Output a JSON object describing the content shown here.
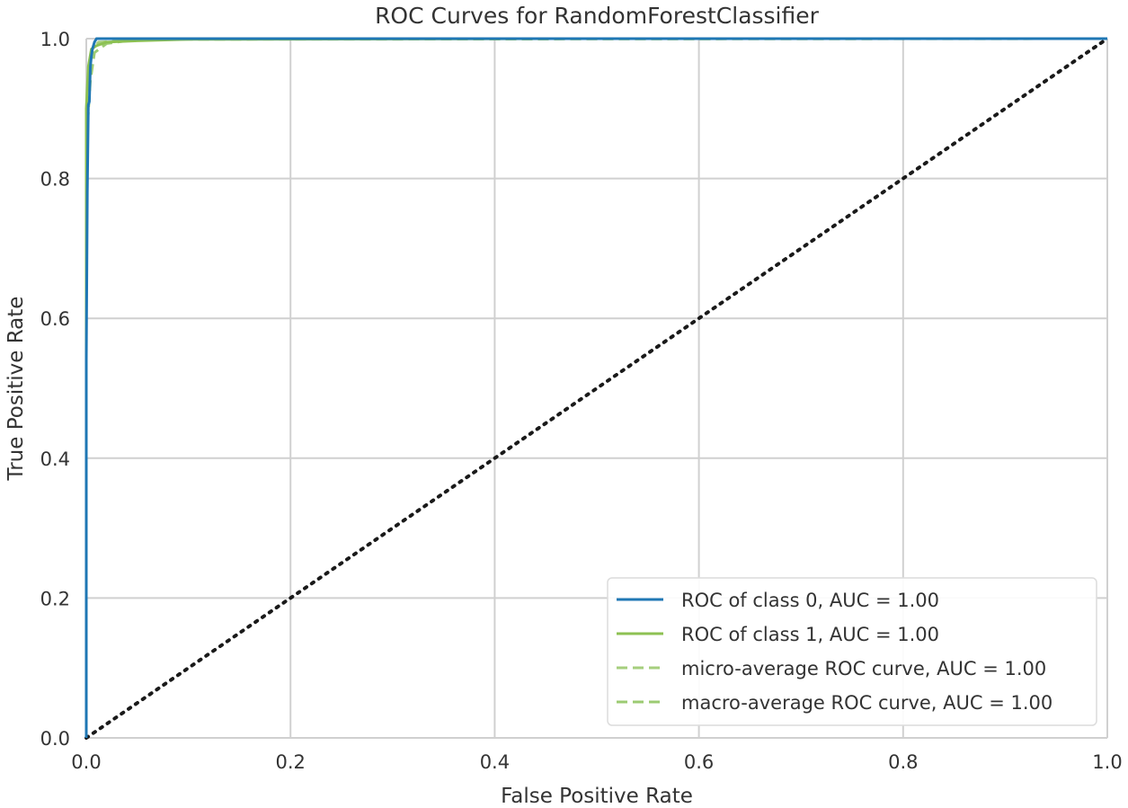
{
  "chart_data": {
    "type": "line",
    "title": "ROC Curves for RandomForestClassifier",
    "xlabel": "False Positive Rate",
    "ylabel": "True Positive Rate",
    "xlim": [
      0.0,
      1.0
    ],
    "ylim": [
      0.0,
      1.0
    ],
    "xticks": [
      "0.0",
      "0.2",
      "0.4",
      "0.6",
      "0.8",
      "1.0"
    ],
    "yticks": [
      "0.0",
      "0.2",
      "0.4",
      "0.6",
      "0.8",
      "1.0"
    ],
    "grid": true,
    "legend_position": "lower-right",
    "series": [
      {
        "name": "ROC of class 0, AUC = 1.00",
        "color": "#1f77b4",
        "style": "solid",
        "x": [
          0.0,
          0.0,
          0.001,
          0.002,
          0.003,
          0.004,
          0.005,
          0.006,
          0.008,
          0.01,
          1.0
        ],
        "y": [
          0.0,
          0.54,
          0.78,
          0.905,
          0.91,
          0.96,
          0.975,
          0.985,
          0.995,
          1.0,
          1.0
        ]
      },
      {
        "name": "ROC of class 1, AUC = 1.00",
        "color": "#8dc152",
        "style": "solid",
        "x": [
          0.0,
          0.0,
          0.002,
          0.005,
          0.01,
          0.02,
          0.05,
          0.1,
          0.46,
          1.0
        ],
        "y": [
          0.0,
          0.9,
          0.96,
          0.985,
          0.99,
          0.995,
          0.997,
          0.999,
          1.0,
          1.0
        ]
      },
      {
        "name": "micro-average ROC curve, AUC = 1.00",
        "color": "#a6cf7e",
        "style": "dashed",
        "x": [
          0.0,
          0.0,
          0.003,
          0.006,
          0.012,
          0.05,
          0.1,
          1.0
        ],
        "y": [
          0.0,
          0.88,
          0.95,
          0.985,
          0.995,
          0.998,
          1.0,
          1.0
        ]
      },
      {
        "name": "macro-average ROC curve, AUC = 1.00",
        "color": "#9ccb73",
        "style": "dashed",
        "x": [
          0.0,
          0.0,
          0.004,
          0.008,
          0.02,
          0.05,
          1.0
        ],
        "y": [
          0.0,
          0.85,
          0.94,
          0.98,
          0.993,
          0.999,
          1.0
        ]
      }
    ],
    "reference_line": {
      "name": "random-chance-diagonal",
      "color": "#1a1a1a",
      "style": "dotted",
      "x": [
        0.0,
        1.0
      ],
      "y": [
        0.0,
        1.0
      ]
    }
  }
}
